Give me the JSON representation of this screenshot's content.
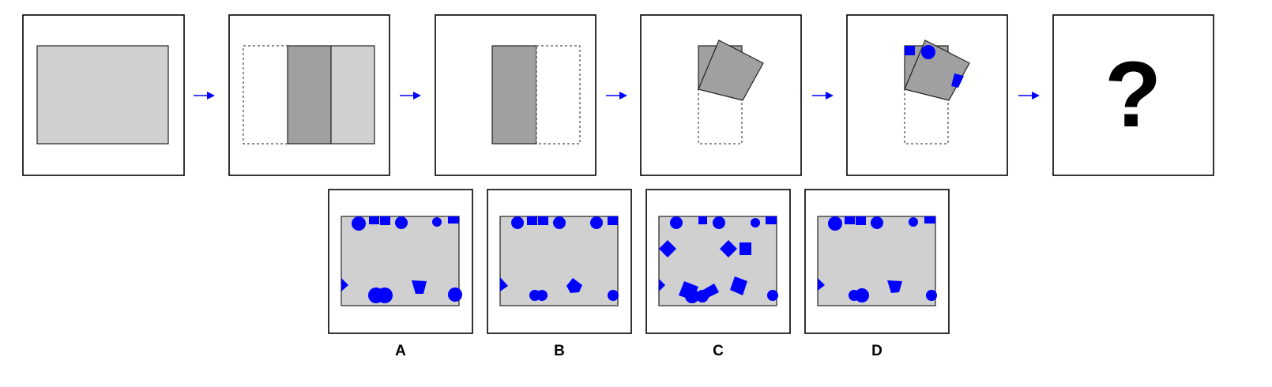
{
  "puzzle": {
    "question_mark": "?",
    "options": [
      {
        "label": "A"
      },
      {
        "label": "B"
      },
      {
        "label": "C"
      },
      {
        "label": "D"
      }
    ]
  },
  "colors": {
    "paper": "#d0d0d0",
    "folded_layer": "#a0a0a0",
    "holes": "#0000ff",
    "arrows": "#0000ff"
  }
}
